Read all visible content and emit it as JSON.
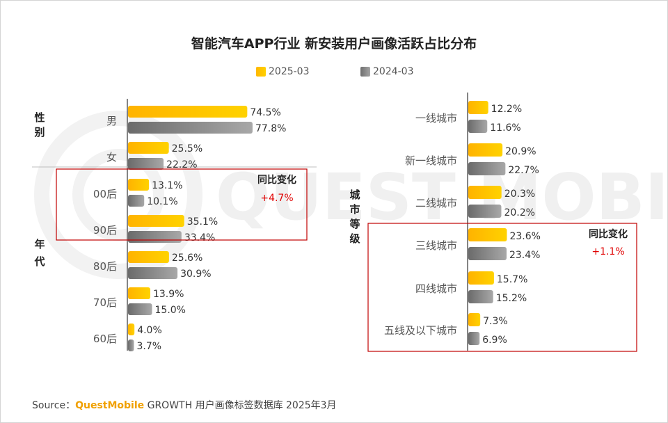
{
  "title": "智能汽车APP行业 新安装用户画像活跃占比分布",
  "legend": [
    {
      "label": "2025-03",
      "color": "#ffc000"
    },
    {
      "label": "2024-03",
      "color": "#808080"
    }
  ],
  "watermark": "QUEST MOBILE",
  "source": {
    "prefix": "Source：",
    "brand": "QuestMobile",
    "rest": " GROWTH 用户画像标签数据库 2025年3月"
  },
  "chart_data": [
    {
      "type": "bar",
      "orientation": "horizontal",
      "groups": [
        {
          "label": "性别",
          "categories": [
            "男",
            "女"
          ]
        },
        {
          "label": "年代",
          "categories": [
            "00后",
            "90后",
            "80后",
            "70后",
            "60后"
          ]
        }
      ],
      "categories": [
        "男",
        "女",
        "00后",
        "90后",
        "80后",
        "70后",
        "60后"
      ],
      "series": [
        {
          "name": "2025-03",
          "values": [
            74.5,
            25.5,
            13.1,
            35.1,
            25.6,
            13.9,
            4.0
          ],
          "labels": [
            "74.5%",
            "25.5%",
            "13.1%",
            "35.1%",
            "25.6%",
            "13.9%",
            "4.0%"
          ]
        },
        {
          "name": "2024-03",
          "values": [
            77.8,
            22.2,
            10.1,
            33.4,
            30.9,
            15.0,
            3.7
          ],
          "labels": [
            "77.8%",
            "22.2%",
            "10.1%",
            "33.4%",
            "30.9%",
            "15.0%",
            "3.7%"
          ]
        }
      ],
      "annotation": {
        "title": "同比变化",
        "value": "+4.7%",
        "covers": [
          "00后",
          "90后"
        ]
      },
      "xlim": [
        0,
        80
      ]
    },
    {
      "type": "bar",
      "orientation": "horizontal",
      "groups": [
        {
          "label": "城市等级",
          "categories": [
            "一线城市",
            "新一线城市",
            "二线城市",
            "三线城市",
            "四线城市",
            "五线及以下城市"
          ]
        }
      ],
      "categories": [
        "一线城市",
        "新一线城市",
        "二线城市",
        "三线城市",
        "四线城市",
        "五线及以下城市"
      ],
      "series": [
        {
          "name": "2025-03",
          "values": [
            12.2,
            20.9,
            20.3,
            23.6,
            15.7,
            7.3
          ],
          "labels": [
            "12.2%",
            "20.9%",
            "20.3%",
            "23.6%",
            "15.7%",
            "7.3%"
          ]
        },
        {
          "name": "2024-03",
          "values": [
            11.6,
            22.7,
            20.2,
            23.4,
            15.2,
            6.9
          ],
          "labels": [
            "11.6%",
            "22.7%",
            "20.2%",
            "23.4%",
            "15.2%",
            "6.9%"
          ]
        }
      ],
      "annotation": {
        "title": "同比变化",
        "value": "+1.1%",
        "covers": [
          "三线城市",
          "四线城市",
          "五线及以下城市"
        ]
      },
      "xlim": [
        0,
        30
      ]
    }
  ]
}
